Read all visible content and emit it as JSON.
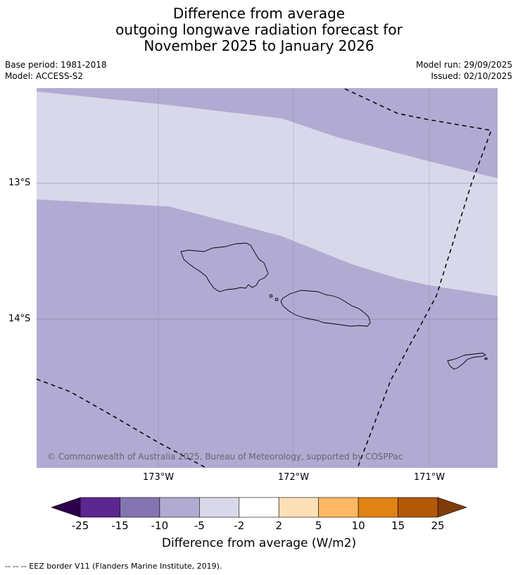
{
  "title": {
    "line1": "Difference from average",
    "line2": "outgoing longwave radiation forecast for",
    "line3": "November 2025 to January 2026"
  },
  "meta": {
    "base_period": "Base period: 1981-2018",
    "model": "Model: ACCESS-S2",
    "model_run": "Model run: 29/09/2025",
    "issued": "Issued: 02/10/2025"
  },
  "map": {
    "lat_labels": [
      "13°S",
      "14°S"
    ],
    "lon_labels": [
      "173°W",
      "172°W",
      "171°W"
    ],
    "copyright": "© Commonwealth of Australia 2025, Bureau of Meteorology, supported by COSPPac",
    "fill_colors": {
      "minus2_to_minus5": "#d8d8ea",
      "minus5_to_minus10": "#b1abd3"
    }
  },
  "colorbar": {
    "ticks": [
      "-25",
      "-15",
      "-10",
      "-5",
      "-2",
      "2",
      "5",
      "10",
      "15",
      "25"
    ],
    "colors": [
      "#5c2790",
      "#8474b1",
      "#b1abd3",
      "#d8d8ea",
      "#ffffff",
      "#fee0b6",
      "#fdb863",
      "#e08214",
      "#b35806"
    ],
    "extend_low_color": "#2d004b",
    "extend_high_color": "#7f3b08",
    "label": "Difference from average (W/m2)"
  },
  "footnote": "--  --  -- EEZ border V11 (Flanders Marine Institute, 2019)."
}
